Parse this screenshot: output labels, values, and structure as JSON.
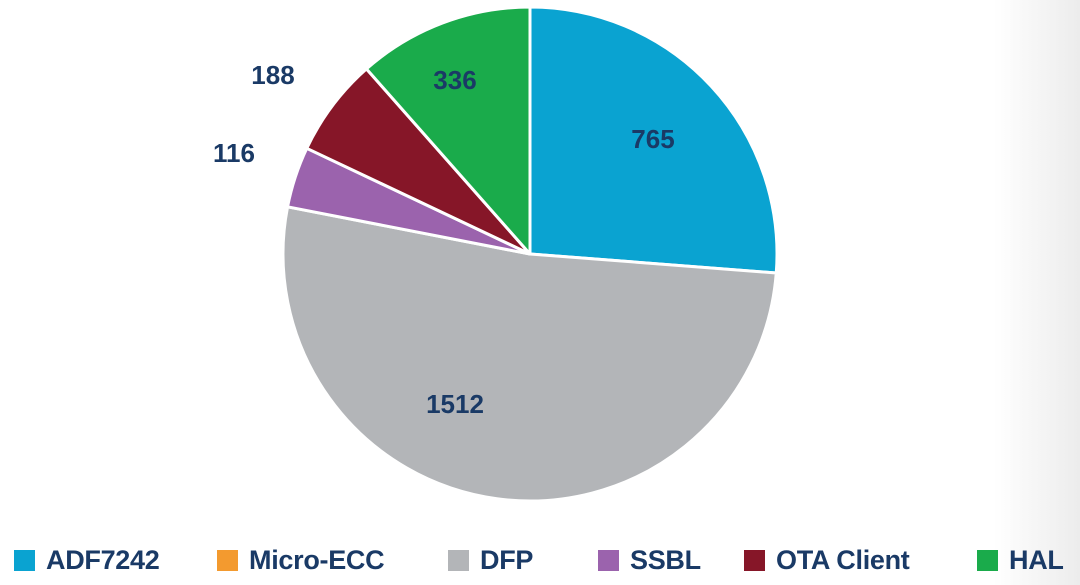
{
  "chart_data": {
    "type": "pie",
    "title": "",
    "slices": [
      {
        "name": "ADF7242",
        "value": 765,
        "color": "#0aa3d1",
        "label": "765"
      },
      {
        "name": "Micro-ECC",
        "value": 0,
        "color": "#f39a2f",
        "label": ""
      },
      {
        "name": "DFP",
        "value": 1512,
        "color": "#b3b5b8",
        "label": "1512"
      },
      {
        "name": "SSBL",
        "value": 116,
        "color": "#9b63ad",
        "label": "116"
      },
      {
        "name": "OTA Client",
        "value": 188,
        "color": "#861628",
        "label": "188"
      },
      {
        "name": "HAL",
        "value": 336,
        "color": "#1aab4b",
        "label": "336"
      }
    ],
    "legend": "bottom",
    "label_color": "#1a3a66"
  }
}
